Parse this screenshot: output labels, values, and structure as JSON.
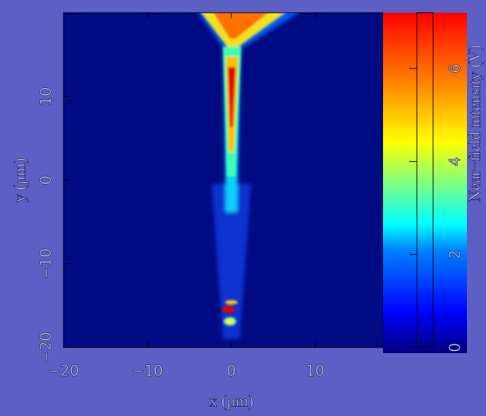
{
  "chart_data": {
    "type": "heatmap",
    "colormap": "jet",
    "xlabel": "x (μm)",
    "ylabel": "y (μm)",
    "xlim": [
      -20,
      18.1
    ],
    "ylim": [
      -20,
      20
    ],
    "xticks": [
      {
        "value": -20,
        "label": "−20"
      },
      {
        "value": -10,
        "label": "−10"
      },
      0,
      10
    ],
    "yticks": [
      {
        "value": -20,
        "label": "−20"
      },
      {
        "value": -10,
        "label": "−10"
      },
      0,
      10
    ],
    "colorbar": {
      "label": "Near−field intensity (V)",
      "clim": [
        0,
        7.2
      ],
      "ticks": [
        0,
        2,
        4,
        6
      ]
    }
  }
}
